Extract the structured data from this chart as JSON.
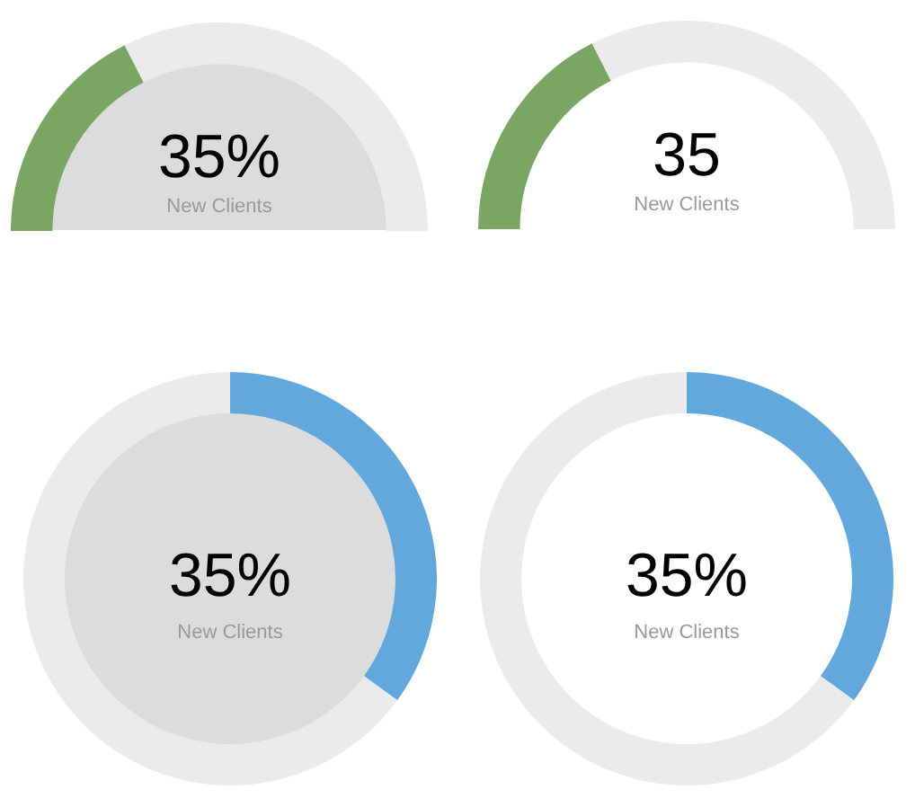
{
  "chart_data": [
    {
      "type": "donut",
      "categories": [
        null,
        null
      ],
      "values": [
        35,
        65
      ],
      "colors": [
        "#7ba563",
        "#ebebeb"
      ],
      "annotations": [
        "35%",
        "New Clients"
      ]
    },
    {
      "type": "donut",
      "categories": [
        null,
        null
      ],
      "values": [
        35,
        65
      ],
      "colors": [
        "#7ba563",
        "#ebebeb"
      ],
      "annotations": [
        "35",
        "New Clients"
      ]
    },
    {
      "type": "donut",
      "categories": [
        null,
        null
      ],
      "values": [
        35,
        65
      ],
      "colors": [
        "#63a8dc",
        "#ebebeb"
      ],
      "annotations": [
        "35%",
        "New Clients"
      ]
    },
    {
      "type": "donut",
      "categories": [
        null,
        null
      ],
      "values": [
        35,
        65
      ],
      "colors": [
        "#63a8dc",
        "#ebebeb"
      ],
      "annotations": [
        "35%",
        "New Clients"
      ]
    }
  ]
}
